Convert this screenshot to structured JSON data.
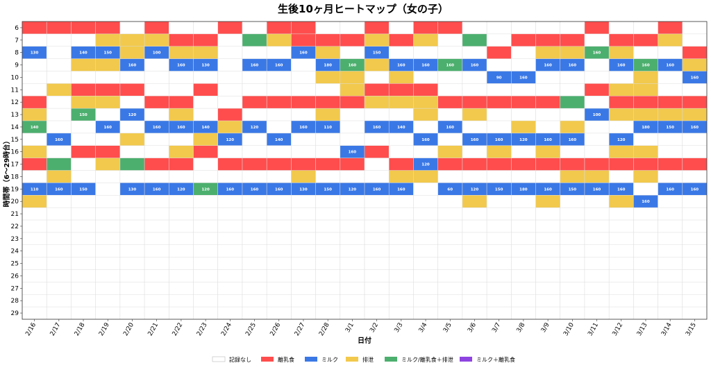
{
  "chart_data": {
    "type": "heatmap",
    "title": "生後10ヶ月ヒートマップ（女の子）",
    "xlabel": "日付",
    "ylabel": "時間帯（6〜29時台）",
    "dates": [
      "2/16",
      "2/17",
      "2/18",
      "2/19",
      "2/20",
      "2/21",
      "2/22",
      "2/23",
      "2/24",
      "2/25",
      "2/26",
      "2/27",
      "2/28",
      "3/1",
      "3/2",
      "3/3",
      "3/4",
      "3/5",
      "3/6",
      "3/7",
      "3/8",
      "3/9",
      "3/10",
      "3/11",
      "3/12",
      "3/13",
      "3/14",
      "3/15"
    ],
    "hours": [
      6,
      7,
      8,
      9,
      10,
      11,
      12,
      13,
      14,
      15,
      16,
      17,
      18,
      19,
      20,
      21,
      22,
      23,
      24,
      25,
      26,
      27,
      28,
      29
    ],
    "categories": [
      {
        "key": "none",
        "label": "記録なし",
        "color": "#ffffff"
      },
      {
        "key": "R",
        "label": "離乳食",
        "color": "#ff4d4d"
      },
      {
        "key": "M",
        "label": "ミルク",
        "color": "#3a78e6"
      },
      {
        "key": "E",
        "label": "排泄",
        "color": "#f2c94c"
      },
      {
        "key": "G",
        "label": "ミルク/離乳食＋排泄",
        "color": "#4caf6e"
      },
      {
        "key": "P",
        "label": "ミルク＋離乳食",
        "color": "#8e44e0"
      }
    ],
    "cells": {
      "6": [
        "R",
        "R",
        "R",
        "R",
        "",
        "R",
        "",
        "",
        "R",
        "",
        "R",
        "R",
        "",
        "",
        "R",
        "",
        "R",
        "R",
        "",
        "",
        "",
        "",
        "",
        "R",
        "",
        "",
        "R",
        ""
      ],
      "7": [
        "",
        "",
        "",
        "E",
        "E",
        "E",
        "R",
        "R",
        "",
        "G",
        "E",
        "R",
        "R",
        "R",
        "E",
        "R",
        "E",
        "",
        "G",
        "",
        "R",
        "R",
        "R",
        "",
        "R",
        "R",
        "E",
        ""
      ],
      "8": [
        "M:130",
        "",
        "M:140",
        "M:150",
        "E",
        "M:100",
        "E",
        "E",
        "",
        "",
        "",
        "M:160",
        "E",
        "",
        "M:150",
        "",
        "",
        "",
        "",
        "R",
        "",
        "E",
        "E",
        "G:160",
        "E",
        "",
        "",
        "R"
      ],
      "9": [
        "",
        "",
        "E",
        "E",
        "M:160",
        "",
        "M:160",
        "M:130",
        "",
        "M:160",
        "M:160",
        "",
        "M:180",
        "G:160",
        "E",
        "M:160",
        "M:160",
        "G:160",
        "M:160",
        "",
        "",
        "M:160",
        "M:160",
        "",
        "M:160",
        "G:160",
        "M:160",
        "E"
      ],
      "10": [
        "",
        "",
        "",
        "",
        "",
        "",
        "",
        "",
        "",
        "",
        "",
        "",
        "E",
        "E",
        "",
        "E",
        "",
        "",
        "",
        "M:90",
        "M:160",
        "",
        "",
        "",
        "",
        "E",
        "",
        "M:160"
      ],
      "11": [
        "",
        "E",
        "R",
        "R",
        "R",
        "",
        "",
        "R",
        "",
        "",
        "",
        "",
        "",
        "E",
        "R",
        "R",
        "R",
        "",
        "",
        "",
        "",
        "",
        "",
        "R",
        "E",
        "E",
        "",
        ""
      ],
      "12": [
        "R",
        "",
        "E",
        "E",
        "",
        "R",
        "R",
        "",
        "",
        "R",
        "R",
        "R",
        "R",
        "R",
        "E",
        "E",
        "E",
        "R",
        "R",
        "R",
        "R",
        "R",
        "G",
        "",
        "R",
        "R",
        "R",
        "R"
      ],
      "13": [
        "E",
        "",
        "G:150",
        "",
        "M:120",
        "",
        "E",
        "",
        "R",
        "",
        "",
        "",
        "E",
        "",
        "",
        "",
        "E",
        "",
        "E",
        "",
        "",
        "",
        "",
        "M:100",
        "E",
        "E",
        "E",
        "E"
      ],
      "14": [
        "G:140",
        "",
        "",
        "M:160",
        "",
        "M:160",
        "M:160",
        "M:140",
        "E",
        "M:120",
        "",
        "M:160",
        "M:110",
        "",
        "M:160",
        "M:140",
        "",
        "M:160",
        "",
        "",
        "E",
        "",
        "E",
        "",
        "",
        "M:180",
        "M:150",
        "M:160"
      ],
      "15": [
        "",
        "M:160",
        "",
        "",
        "E",
        "",
        "",
        "E",
        "M:120",
        "",
        "M:140",
        "",
        "",
        "",
        "",
        "",
        "M:160",
        "",
        "M:160",
        "M:160",
        "M:120",
        "M:160",
        "M:160",
        "",
        "M:120",
        "",
        "",
        ""
      ],
      "16": [
        "E",
        "",
        "R",
        "R",
        "",
        "",
        "E",
        "R",
        "",
        "",
        "",
        "",
        "",
        "M:160",
        "R",
        "",
        "",
        "E",
        "",
        "E",
        "",
        "E",
        "",
        "",
        "E",
        "E",
        "",
        ""
      ],
      "17": [
        "R",
        "G",
        "",
        "E",
        "G",
        "R",
        "R",
        "",
        "R",
        "R",
        "R",
        "R",
        "R",
        "R",
        "",
        "R",
        "M:120",
        "R",
        "R",
        "R",
        "R",
        "R",
        "R",
        "R",
        "R",
        "R",
        "R",
        "R"
      ],
      "18": [
        "",
        "E",
        "",
        "",
        "",
        "",
        "",
        "",
        "",
        "",
        "",
        "E",
        "",
        "",
        "",
        "E",
        "E",
        "",
        "",
        "",
        "",
        "",
        "E",
        "E",
        "",
        "E",
        "",
        ""
      ],
      "19": [
        "M:110",
        "M:160",
        "M:150",
        "",
        "M:130",
        "M:160",
        "M:120",
        "G:120",
        "M:160",
        "M:160",
        "M:160",
        "M:130",
        "M:150",
        "M:120",
        "M:160",
        "M:160",
        "",
        "M:60",
        "M:120",
        "M:150",
        "M:180",
        "M:160",
        "M:150",
        "M:160",
        "M:160",
        "",
        "M:160",
        "M:160"
      ],
      "20": [
        "E",
        "",
        "",
        "",
        "",
        "",
        "",
        "",
        "",
        "",
        "",
        "",
        "",
        "",
        "",
        "",
        "",
        "",
        "E",
        "",
        "",
        "E",
        "",
        "",
        "E",
        "M:160",
        "",
        ""
      ],
      "21": [],
      "22": [],
      "23": [],
      "24": [],
      "25": [],
      "26": [],
      "27": [],
      "28": [],
      "29": []
    }
  }
}
